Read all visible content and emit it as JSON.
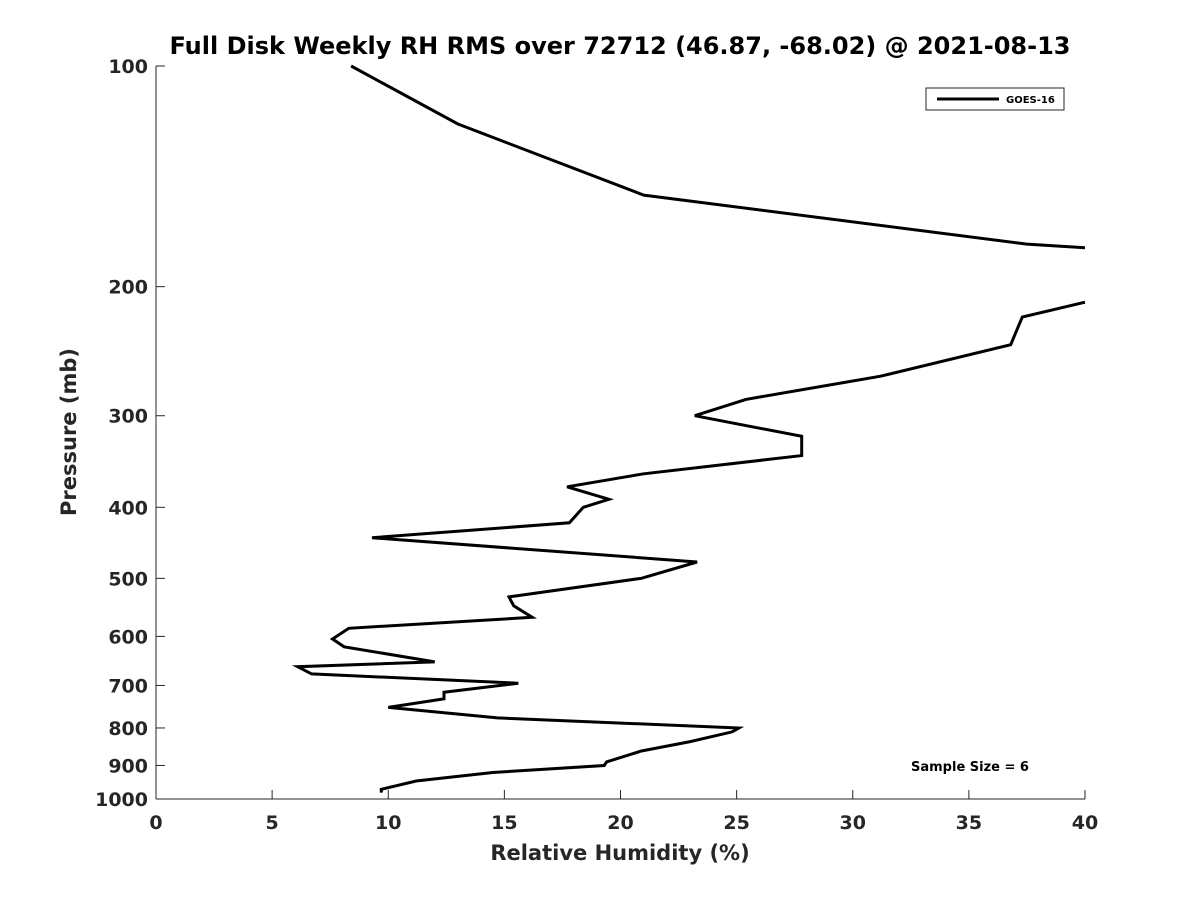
{
  "chart_data": {
    "type": "line",
    "title": "Full Disk Weekly RH RMS over 72712 (46.87, -68.02) @ 2021-08-13",
    "xlabel": "Relative Humidity (%)",
    "ylabel": "Pressure (mb)",
    "xlim": [
      0,
      40
    ],
    "ylim": [
      100,
      1000
    ],
    "yscale": "log",
    "yreverse": true,
    "grid": false,
    "legend_position": "top-right",
    "x_ticks": [
      0,
      5,
      10,
      15,
      20,
      25,
      30,
      35,
      40
    ],
    "x_tick_labels": [
      "0",
      "5",
      "10",
      "15",
      "20",
      "25",
      "30",
      "35",
      "40"
    ],
    "y_ticks": [
      100,
      200,
      300,
      400,
      500,
      600,
      700,
      800,
      900,
      1000
    ],
    "y_tick_labels": [
      "100",
      "200",
      "300",
      "400",
      "500",
      "600",
      "700",
      "800",
      "900",
      "1000"
    ],
    "series": [
      {
        "name": "GOES-16",
        "color": "#000000",
        "segments": [
          {
            "x": [
              8.4,
              13.0,
              21.0,
              37.5,
              40.0
            ],
            "y": [
              100,
              120,
              150,
              175,
              177
            ]
          },
          {
            "x": [
              40.0,
              37.3,
              36.8,
              31.2,
              25.4,
              23.2,
              27.8,
              27.8,
              21.0,
              17.7,
              19.5,
              18.4,
              17.8,
              9.3,
              23.3,
              20.9,
              15.2,
              15.4,
              16.2,
              8.3,
              7.6,
              8.1,
              12.0,
              6.1,
              6.7,
              15.6,
              12.4,
              12.4,
              10.0,
              14.7,
              25.1,
              24.8,
              23.0,
              20.9,
              19.4,
              19.3,
              14.5,
              11.2,
              9.7,
              9.7
            ],
            "y": [
              210,
              220,
              240,
              265,
              285,
              300,
              320,
              340,
              360,
              375,
              390,
              400,
              420,
              440,
              475,
              500,
              530,
              545,
              565,
              585,
              605,
              620,
              650,
              660,
              675,
              695,
              715,
              730,
              750,
              775,
              800,
              810,
              835,
              860,
              890,
              900,
              920,
              945,
              970,
              980
            ]
          }
        ]
      }
    ],
    "annotations": [
      {
        "text": "Sample Size = 6",
        "position": "bottom-right"
      }
    ]
  }
}
